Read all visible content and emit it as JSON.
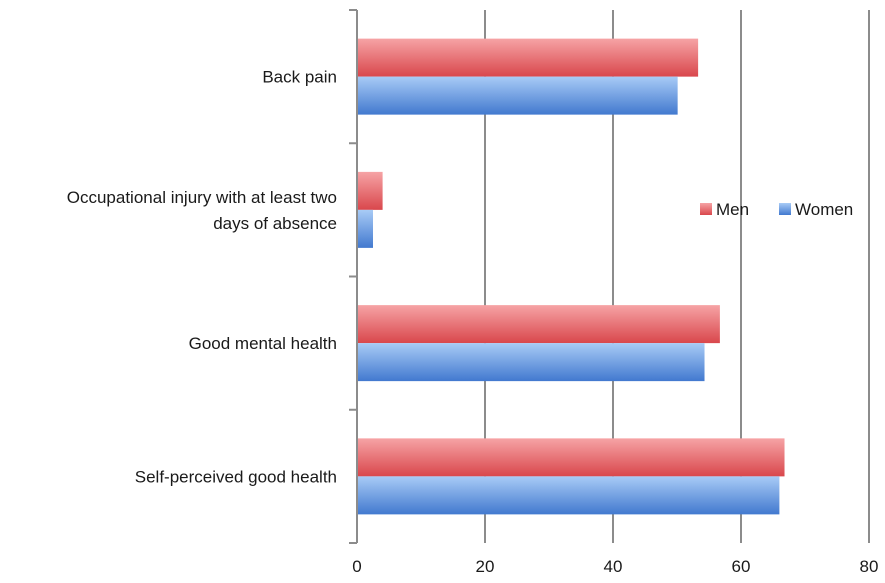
{
  "chart_data": {
    "type": "bar",
    "orientation": "horizontal",
    "categories": [
      "Back pain",
      "Occupational injury with at least two days of absence",
      "Good mental health",
      "Self-perceived good health"
    ],
    "category_label_lines": [
      [
        "Back pain"
      ],
      [
        "Occupational injury with at least two",
        "days of absence"
      ],
      [
        "Good mental health"
      ],
      [
        "Self-perceived good health"
      ]
    ],
    "series": [
      {
        "name": "Men",
        "values": [
          53.3,
          4.0,
          56.7,
          66.8
        ],
        "color": "#e0575b",
        "color_light": "#f49a9c"
      },
      {
        "name": "Women",
        "values": [
          50.1,
          2.5,
          54.3,
          66.0
        ],
        "color": "#4e86d6",
        "color_light": "#9fc4f4"
      }
    ],
    "xlim": [
      0,
      80
    ],
    "xticks": [
      "0",
      "20",
      "40",
      "60",
      "80"
    ],
    "grid": "vertical",
    "legend_position": "right",
    "title": "",
    "xlabel": "",
    "ylabel": ""
  }
}
